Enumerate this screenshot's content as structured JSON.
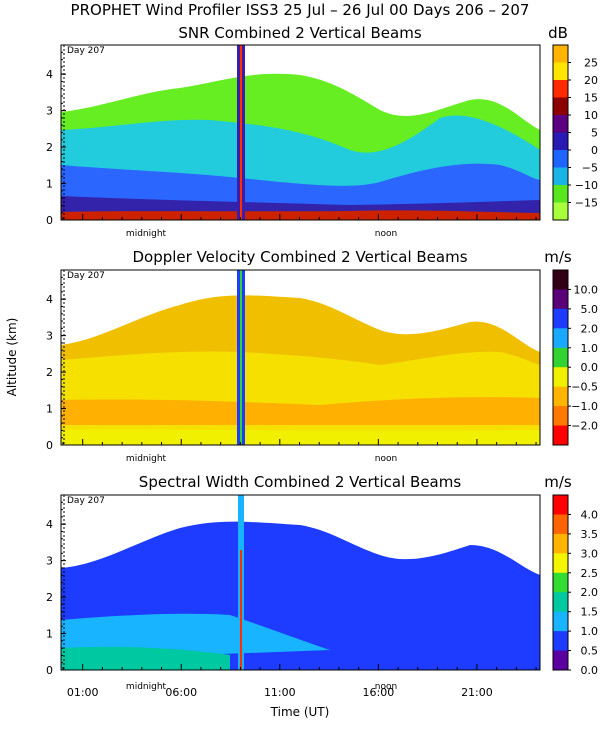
{
  "figure_title": "PROPHET Wind Profiler ISS3  25 Jul – 26 Jul 00 Days 206 – 207",
  "shared": {
    "ylabel": "Altitude (km)",
    "xlabel": "Time (UT)",
    "day_marker": "Day 207",
    "midnight_label": "midnight",
    "noon_label": "noon",
    "y_ticks": [
      "0",
      "1",
      "2",
      "3",
      "4"
    ],
    "x_ticks": [
      "01:00",
      "06:00",
      "11:00",
      "16:00",
      "21:00"
    ]
  },
  "chart_data": [
    {
      "type": "heatmap",
      "title": "SNR Combined 2 Vertical Beams",
      "unit": "dB",
      "ylim": [
        0,
        4.8
      ],
      "colorbar_labels": [
        "25",
        "20",
        "15",
        "10",
        "5",
        "0",
        "−5",
        "−10",
        "−15"
      ],
      "colorbar_colors": [
        "#ffb400",
        "#ffe600",
        "#ff2a00",
        "#8c0000",
        "#5a0080",
        "#2a1ab4",
        "#1e64ff",
        "#19b4e6",
        "#5ae61e",
        "#aaff3c"
      ]
    },
    {
      "type": "heatmap",
      "title": "Doppler Velocity Combined 2 Vertical Beams",
      "unit": "m/s",
      "ylim": [
        0,
        4.8
      ],
      "colorbar_labels": [
        "10.0",
        "5.0",
        "2.0",
        "1.0",
        "0.0",
        "−0.5",
        "−1.0",
        "−2.0"
      ],
      "colorbar_colors": [
        "#320014",
        "#5a0078",
        "#1e3cff",
        "#19aaff",
        "#32d232",
        "#f0f000",
        "#ffb400",
        "#ff7800",
        "#ff0000"
      ]
    },
    {
      "type": "heatmap",
      "title": "Spectral Width Combined 2 Vertical Beams",
      "unit": "m/s",
      "ylim": [
        0,
        4.8
      ],
      "colorbar_labels": [
        "4.0",
        "3.5",
        "3.0",
        "2.5",
        "2.0",
        "1.5",
        "1.0",
        "0.5",
        "0.0"
      ],
      "colorbar_colors": [
        "#ff0000",
        "#ff6400",
        "#ffb400",
        "#f5f500",
        "#32dc32",
        "#00c8a0",
        "#19b4ff",
        "#1e3cff",
        "#5a00a0"
      ]
    }
  ]
}
